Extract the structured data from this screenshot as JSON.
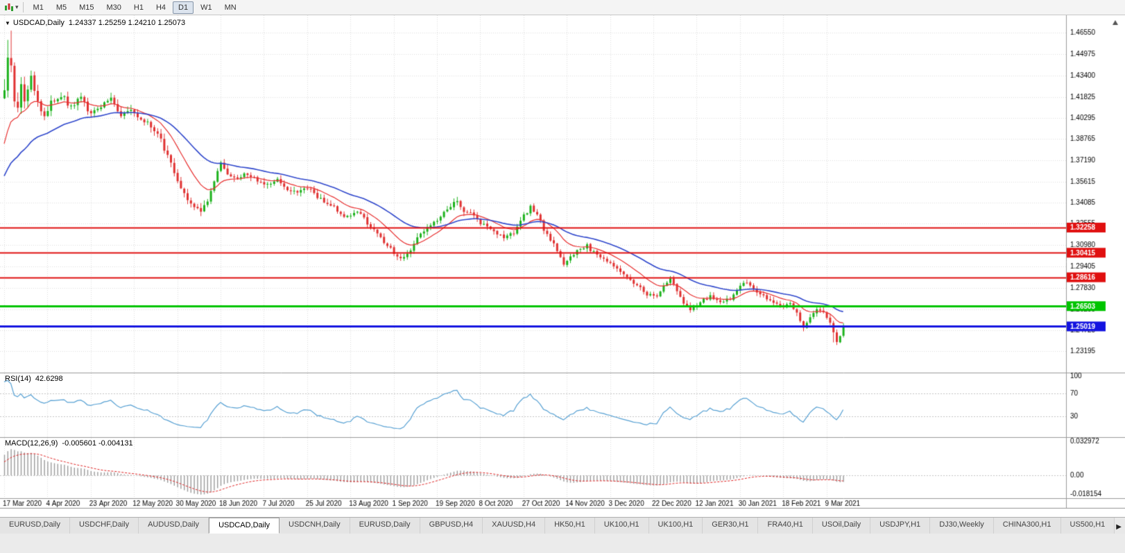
{
  "toolbar": {
    "timeframes": [
      "M1",
      "M5",
      "M15",
      "M30",
      "H1",
      "H4",
      "D1",
      "W1",
      "MN"
    ],
    "active_timeframe": "D1",
    "dropdown_caret": "▾"
  },
  "chart": {
    "symbol_label": "USDCAD,Daily",
    "ohlc_text": "1.24337 1.25259 1.24210 1.25073",
    "collapse_triangle": "▼"
  },
  "rsi": {
    "label": "RSI(14)",
    "value": "42.6298"
  },
  "macd": {
    "label": "MACD(12,26,9)",
    "values": "-0.005601 -0.004131"
  },
  "tabs": {
    "items": [
      "EURUSD,Daily",
      "USDCHF,Daily",
      "AUDUSD,Daily",
      "USDCAD,Daily",
      "USDCNH,Daily",
      "EURUSD,Daily",
      "GBPUSD,H4",
      "XAUUSD,H4",
      "HK50,H1",
      "UK100,H1",
      "UK100,H1",
      "GER30,H1",
      "FRA40,H1",
      "USOil,Daily",
      "USDJPY,H1",
      "DJ30,Weekly",
      "CHINA300,H1",
      "US500,H1"
    ],
    "active_index": 3,
    "scroll_right_icon": "▶"
  },
  "colors": {
    "up": "#1cb21c",
    "down": "#e03131",
    "ma_fast": "#e82e2e",
    "ma_slow": "#2f47cc",
    "rsi_line": "#56a0d3",
    "macd_hist": "#9a9a9a",
    "macd_signal": "#e02020",
    "grid": "#dcdcdc",
    "level_gray": "#c4c4c4",
    "axis_text": "#000000",
    "separator": "#9a9a9a"
  },
  "chart_data": {
    "type": "candlestick",
    "symbol": "USDCAD",
    "timeframe": "Daily",
    "last_bar": {
      "o": 1.24337,
      "h": 1.25259,
      "l": 1.2421,
      "c": 1.25073
    },
    "x_labels": [
      "17 Mar 2020",
      "4 Apr 2020",
      "23 Apr 2020",
      "12 May 2020",
      "30 May 2020",
      "18 Jun 2020",
      "7 Jul 2020",
      "25 Jul 2020",
      "13 Aug 2020",
      "1 Sep 2020",
      "19 Sep 2020",
      "8 Oct 2020",
      "27 Oct 2020",
      "14 Nov 2020",
      "3 Dec 2020",
      "22 Dec 2020",
      "12 Jan 2021",
      "30 Jan 2021",
      "18 Feb 2021",
      "9 Mar 2021"
    ],
    "x_label_every_bars": 13,
    "bars_visible": 253,
    "warmup_bars": 40,
    "seed": 97,
    "y_ticks": [
      "1.46550",
      "1.44975",
      "1.43400",
      "1.41825",
      "1.40295",
      "1.38765",
      "1.37190",
      "1.35615",
      "1.34085",
      "1.32555",
      "1.30980",
      "1.29405",
      "1.27830",
      "1.26255",
      "1.24725",
      "1.23195"
    ],
    "price_range": {
      "top": 1.475,
      "bottom": 1.224
    },
    "close_anchors": [
      [
        0,
        1.424
      ],
      [
        1,
        1.447
      ],
      [
        2,
        1.442
      ],
      [
        3,
        1.418
      ],
      [
        4,
        1.407
      ],
      [
        5,
        1.426
      ],
      [
        6,
        1.412
      ],
      [
        8,
        1.433
      ],
      [
        10,
        1.415
      ],
      [
        12,
        1.405
      ],
      [
        14,
        1.414
      ],
      [
        17,
        1.42
      ],
      [
        20,
        1.411
      ],
      [
        23,
        1.418
      ],
      [
        26,
        1.405
      ],
      [
        29,
        1.411
      ],
      [
        32,
        1.416
      ],
      [
        35,
        1.405
      ],
      [
        38,
        1.409
      ],
      [
        41,
        1.401
      ],
      [
        44,
        1.397
      ],
      [
        47,
        1.386
      ],
      [
        50,
        1.369
      ],
      [
        53,
        1.35
      ],
      [
        56,
        1.34
      ],
      [
        59,
        1.336
      ],
      [
        61,
        1.343
      ],
      [
        63,
        1.357
      ],
      [
        65,
        1.37
      ],
      [
        67,
        1.362
      ],
      [
        70,
        1.358
      ],
      [
        73,
        1.362
      ],
      [
        76,
        1.356
      ],
      [
        79,
        1.354
      ],
      [
        82,
        1.357
      ],
      [
        85,
        1.351
      ],
      [
        88,
        1.347
      ],
      [
        91,
        1.352
      ],
      [
        94,
        1.344
      ],
      [
        97,
        1.341
      ],
      [
        100,
        1.335
      ],
      [
        103,
        1.33
      ],
      [
        106,
        1.334
      ],
      [
        109,
        1.326
      ],
      [
        112,
        1.318
      ],
      [
        115,
        1.31
      ],
      [
        118,
        1.302
      ],
      [
        120,
        1.3
      ],
      [
        122,
        1.307
      ],
      [
        125,
        1.318
      ],
      [
        128,
        1.324
      ],
      [
        131,
        1.331
      ],
      [
        134,
        1.339
      ],
      [
        136,
        1.341
      ],
      [
        138,
        1.335
      ],
      [
        141,
        1.331
      ],
      [
        144,
        1.324
      ],
      [
        147,
        1.319
      ],
      [
        150,
        1.315
      ],
      [
        153,
        1.319
      ],
      [
        156,
        1.331
      ],
      [
        158,
        1.338
      ],
      [
        160,
        1.333
      ],
      [
        162,
        1.321
      ],
      [
        164,
        1.314
      ],
      [
        166,
        1.306
      ],
      [
        168,
        1.295
      ],
      [
        170,
        1.301
      ],
      [
        172,
        1.306
      ],
      [
        175,
        1.309
      ],
      [
        178,
        1.302
      ],
      [
        181,
        1.297
      ],
      [
        184,
        1.293
      ],
      [
        187,
        1.287
      ],
      [
        190,
        1.28
      ],
      [
        193,
        1.274
      ],
      [
        196,
        1.2715
      ],
      [
        198,
        1.279
      ],
      [
        200,
        1.285
      ],
      [
        202,
        1.276
      ],
      [
        204,
        1.268
      ],
      [
        206,
        1.263
      ],
      [
        209,
        1.268
      ],
      [
        212,
        1.272
      ],
      [
        215,
        1.267
      ],
      [
        218,
        1.271
      ],
      [
        221,
        1.279
      ],
      [
        223,
        1.283
      ],
      [
        225,
        1.278
      ],
      [
        228,
        1.272
      ],
      [
        231,
        1.268
      ],
      [
        234,
        1.265
      ],
      [
        236,
        1.267
      ],
      [
        238,
        1.259
      ],
      [
        240,
        1.249
      ],
      [
        242,
        1.256
      ],
      [
        244,
        1.263
      ],
      [
        246,
        1.261
      ],
      [
        248,
        1.252
      ],
      [
        250,
        1.239
      ],
      [
        251,
        1.242
      ],
      [
        252,
        1.2507
      ]
    ],
    "warmup_anchors": [
      [
        -40,
        1.327
      ],
      [
        -30,
        1.33
      ],
      [
        -20,
        1.336
      ],
      [
        -12,
        1.345
      ],
      [
        -6,
        1.37
      ],
      [
        -2,
        1.405
      ],
      [
        -1,
        1.415
      ]
    ],
    "vol_anchors": [
      [
        0,
        0.01
      ],
      [
        6,
        0.008
      ],
      [
        12,
        0.005
      ],
      [
        30,
        0.0042
      ],
      [
        50,
        0.0045
      ],
      [
        70,
        0.0036
      ],
      [
        100,
        0.0032
      ],
      [
        130,
        0.0034
      ],
      [
        160,
        0.0032
      ],
      [
        190,
        0.0028
      ],
      [
        220,
        0.0026
      ],
      [
        240,
        0.003
      ],
      [
        252,
        0.0036
      ]
    ],
    "pinned_highs": [
      [
        1,
        1.46
      ],
      [
        2,
        1.4668
      ]
    ],
    "pinned_lows": [
      [
        249,
        1.2385
      ],
      [
        250,
        1.2367
      ],
      [
        251,
        1.2395
      ]
    ],
    "horizontal_lines": [
      {
        "price": 1.32258,
        "label": "1.32258",
        "color": "#e01010",
        "width": 2
      },
      {
        "price": 1.30415,
        "label": "1.30415",
        "color": "#e01010",
        "width": 2
      },
      {
        "price": 1.28616,
        "label": "1.28616",
        "color": "#e01010",
        "width": 2
      },
      {
        "price": 1.26503,
        "label": "1.26503",
        "color": "#00c400",
        "width": 3
      },
      {
        "price": 1.25019,
        "label": "1.25019",
        "color": "#1414e0",
        "width": 3
      }
    ],
    "moving_averages": [
      {
        "type": "ema",
        "period": 13,
        "color": "#e82e2e"
      },
      {
        "type": "ema",
        "period": 34,
        "color": "#2f47cc"
      }
    ],
    "rsi": {
      "period": 14,
      "levels": [
        "100",
        "70",
        "30"
      ],
      "last_value": 42.6298
    },
    "macd": {
      "fast": 12,
      "slow": 26,
      "signal": 9,
      "axis_labels": [
        "0.032972",
        "0.00",
        "-0.018154"
      ],
      "range": [
        -0.018154,
        0.032972
      ],
      "last_main": -0.005601,
      "last_signal": -0.004131
    }
  }
}
